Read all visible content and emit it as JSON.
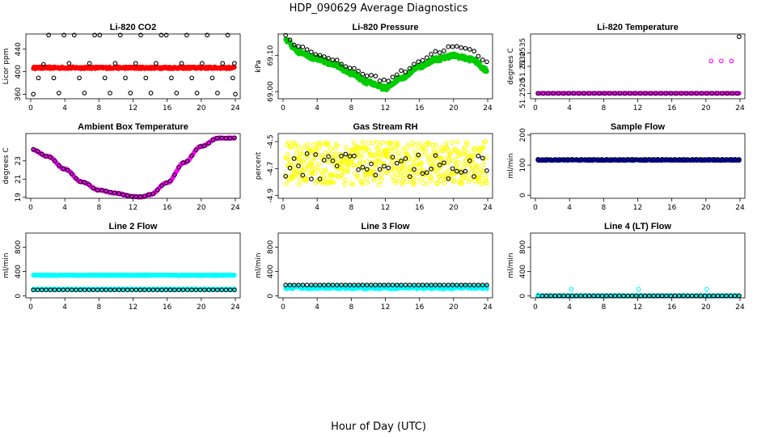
{
  "figure": {
    "title": "HDP_090629  Average Diagnostics",
    "xlabel": "Hour of Day (UTC)"
  },
  "chart_data": [
    {
      "id": "co2",
      "type": "scatter",
      "title": "Li-820 CO2",
      "ylabel": "Licor ppm",
      "xlim": [
        0,
        24
      ],
      "xticks": [
        0,
        4,
        8,
        12,
        16,
        20,
        24
      ],
      "ylim": [
        352,
        467
      ],
      "yticks": [
        {
          "v": 360,
          "label": "360"
        },
        {
          "v": 400,
          "label": "400"
        },
        {
          "v": 440,
          "label": "440"
        }
      ],
      "series": [
        {
          "name": "fine",
          "color": "#ff0000",
          "filled": true,
          "gen": "flat",
          "params": {
            "v": 407,
            "noise": 1.8,
            "n": 420
          }
        },
        {
          "name": "hourly",
          "color": "#000000",
          "filled": false,
          "points": [
            [
              0.3,
              360
            ],
            [
              0.9,
              389
            ],
            [
              1.5,
              413
            ],
            [
              2.1,
              465
            ],
            [
              2.7,
              389
            ],
            [
              3.3,
              362
            ],
            [
              3.9,
              465
            ],
            [
              4.5,
              415
            ],
            [
              5.1,
              465
            ],
            [
              5.7,
              389
            ],
            [
              6.3,
              362
            ],
            [
              6.9,
              415
            ],
            [
              7.5,
              465
            ],
            [
              8.1,
              465
            ],
            [
              8.7,
              389
            ],
            [
              9.3,
              362
            ],
            [
              9.9,
              415
            ],
            [
              10.5,
              465
            ],
            [
              11.1,
              389
            ],
            [
              11.7,
              362
            ],
            [
              12.3,
              415
            ],
            [
              12.9,
              465
            ],
            [
              13.5,
              389
            ],
            [
              14.1,
              362
            ],
            [
              14.7,
              415
            ],
            [
              15.3,
              465
            ],
            [
              15.9,
              465
            ],
            [
              16.5,
              389
            ],
            [
              17.1,
              362
            ],
            [
              17.7,
              415
            ],
            [
              18.3,
              465
            ],
            [
              18.9,
              389
            ],
            [
              19.5,
              362
            ],
            [
              20.1,
              415
            ],
            [
              20.7,
              465
            ],
            [
              21.3,
              389
            ],
            [
              21.9,
              362
            ],
            [
              22.5,
              415
            ],
            [
              23.1,
              465
            ],
            [
              23.7,
              389
            ],
            [
              24.0,
              360
            ],
            [
              23.9,
              415
            ]
          ]
        }
      ]
    },
    {
      "id": "pressure",
      "type": "scatter",
      "title": "Li-820 Pressure",
      "ylabel": "kPa",
      "xlim": [
        0,
        24
      ],
      "xticks": [
        0,
        4,
        8,
        12,
        16,
        20,
        24
      ],
      "ylim": [
        68.98,
        69.16
      ],
      "yticks": [
        {
          "v": 69.0,
          "label": "69.00"
        },
        {
          "v": 69.1,
          "label": "69.10"
        }
      ],
      "series": [
        {
          "name": "fine",
          "color": "#00cc00",
          "filled": true,
          "gen": "curve",
          "params": {
            "n": 420,
            "noise": 0.006,
            "keys": [
              [
                0,
                69.145
              ],
              [
                2,
                69.11
              ],
              [
                4,
                69.09
              ],
              [
                6,
                69.075
              ],
              [
                8,
                69.05
              ],
              [
                10,
                69.025
              ],
              [
                12,
                69.01
              ],
              [
                14,
                69.04
              ],
              [
                16,
                69.07
              ],
              [
                18,
                69.09
              ],
              [
                20,
                69.1
              ],
              [
                22,
                69.09
              ],
              [
                24,
                69.06
              ]
            ]
          }
        },
        {
          "name": "hourly",
          "color": "#000000",
          "filled": false,
          "gen": "curve",
          "params": {
            "n": 48,
            "noise": 0.004,
            "keys": [
              [
                0,
                69.155
              ],
              [
                2,
                69.125
              ],
              [
                4,
                69.105
              ],
              [
                6,
                69.085
              ],
              [
                8,
                69.065
              ],
              [
                10,
                69.045
              ],
              [
                12,
                69.03
              ],
              [
                14,
                69.055
              ],
              [
                16,
                69.085
              ],
              [
                18,
                69.11
              ],
              [
                20,
                69.125
              ],
              [
                22,
                69.115
              ],
              [
                24,
                69.08
              ]
            ]
          }
        }
      ]
    },
    {
      "id": "li820temp",
      "type": "scatter",
      "title": "Li-820 Temperature",
      "ylabel": "degrees C",
      "xlim": [
        0,
        24
      ],
      "xticks": [
        0,
        4,
        8,
        12,
        16,
        20,
        24
      ],
      "ylim": [
        51.2518,
        51.2542
      ],
      "yticks": [
        {
          "v": 51.252,
          "label": "51.2520"
        },
        {
          "v": 51.253,
          "label": "51.2530"
        },
        {
          "v": 51.2535,
          "label": "51.2535"
        }
      ],
      "series": [
        {
          "name": "fine",
          "color": "#ff00ff",
          "filled": true,
          "gen": "flat",
          "params": {
            "v": 51.252,
            "noise": 0,
            "n": 300
          }
        },
        {
          "name": "hourly",
          "color": "#000000",
          "filled": false,
          "points": [
            [
              0.3,
              51.252
            ],
            [
              0.9,
              51.252
            ],
            [
              1.5,
              51.252
            ],
            [
              2.1,
              51.252
            ],
            [
              2.7,
              51.252
            ],
            [
              3.3,
              51.252
            ],
            [
              3.9,
              51.252
            ],
            [
              4.5,
              51.252
            ],
            [
              5.1,
              51.252
            ],
            [
              5.7,
              51.252
            ],
            [
              6.3,
              51.252
            ],
            [
              6.9,
              51.252
            ],
            [
              7.5,
              51.252
            ],
            [
              8.1,
              51.252
            ],
            [
              8.7,
              51.252
            ],
            [
              9.3,
              51.252
            ],
            [
              9.9,
              51.252
            ],
            [
              10.5,
              51.252
            ],
            [
              11.1,
              51.252
            ],
            [
              11.7,
              51.252
            ],
            [
              12.3,
              51.252
            ],
            [
              12.9,
              51.252
            ],
            [
              13.5,
              51.252
            ],
            [
              14.1,
              51.252
            ],
            [
              14.7,
              51.252
            ],
            [
              15.3,
              51.252
            ],
            [
              15.9,
              51.252
            ],
            [
              16.5,
              51.252
            ],
            [
              17.1,
              51.252
            ],
            [
              17.7,
              51.252
            ],
            [
              18.3,
              51.252
            ],
            [
              18.9,
              51.252
            ],
            [
              19.5,
              51.252
            ],
            [
              20.1,
              51.252
            ],
            [
              20.7,
              51.252
            ],
            [
              21.3,
              51.252
            ],
            [
              21.9,
              51.252
            ],
            [
              22.5,
              51.252
            ],
            [
              23.1,
              51.252
            ],
            [
              23.7,
              51.252
            ],
            [
              23.9,
              51.2541
            ]
          ]
        },
        {
          "name": "outliers",
          "color": "#ff00ff",
          "filled": false,
          "points": [
            [
              20.6,
              51.2532
            ],
            [
              21.8,
              51.2532
            ],
            [
              23.0,
              51.2532
            ]
          ]
        }
      ]
    },
    {
      "id": "ambient",
      "type": "scatter",
      "title": "Ambient Box Temperature",
      "ylabel": "degrees C",
      "xlim": [
        0,
        24
      ],
      "xticks": [
        0,
        4,
        8,
        12,
        16,
        20,
        24
      ],
      "ylim": [
        18.9,
        26.0
      ],
      "yticks": [
        {
          "v": 19,
          "label": "19"
        },
        {
          "v": 21,
          "label": "21"
        },
        {
          "v": 23,
          "label": "23"
        }
      ],
      "series": [
        {
          "name": "fine",
          "color": "#ff00ff",
          "filled": true,
          "gen": "curve",
          "params": {
            "n": 300,
            "noise": 0.05,
            "keys": [
              [
                0,
                24.3
              ],
              [
                2,
                23.5
              ],
              [
                4,
                22.1
              ],
              [
                6,
                20.7
              ],
              [
                8,
                19.8
              ],
              [
                10,
                19.45
              ],
              [
                12,
                19.1
              ],
              [
                13,
                19.05
              ],
              [
                14,
                19.3
              ],
              [
                16,
                20.6
              ],
              [
                18,
                22.8
              ],
              [
                20,
                24.6
              ],
              [
                22,
                25.5
              ],
              [
                24,
                25.5
              ]
            ]
          }
        },
        {
          "name": "hourly",
          "color": "#000000",
          "filled": false,
          "gen": "curve",
          "params": {
            "n": 48,
            "noise": 0.03,
            "keys": [
              [
                0,
                24.3
              ],
              [
                2,
                23.5
              ],
              [
                4,
                22.1
              ],
              [
                6,
                20.7
              ],
              [
                8,
                19.8
              ],
              [
                10,
                19.45
              ],
              [
                12,
                19.1
              ],
              [
                13,
                19.05
              ],
              [
                14,
                19.3
              ],
              [
                16,
                20.6
              ],
              [
                18,
                22.8
              ],
              [
                20,
                24.6
              ],
              [
                22,
                25.5
              ],
              [
                24,
                25.5
              ]
            ]
          }
        }
      ]
    },
    {
      "id": "rh",
      "type": "scatter",
      "title": "Gas Stream RH",
      "ylabel": "percent",
      "xlim": [
        0,
        24
      ],
      "xticks": [
        0,
        4,
        8,
        12,
        16,
        20,
        24
      ],
      "ylim": [
        -4.92,
        -4.44
      ],
      "yticks": [
        {
          "v": -4.9,
          "label": "-4.9"
        },
        {
          "v": -4.7,
          "label": "-4.7"
        },
        {
          "v": -4.5,
          "label": "-4.5"
        }
      ],
      "series": [
        {
          "name": "fine",
          "color": "#ffff00",
          "filled": false,
          "gen": "band",
          "params": {
            "n": 520,
            "lo": -4.82,
            "hi": -4.5
          }
        },
        {
          "name": "hourly",
          "color": "#000000",
          "filled": false,
          "gen": "band",
          "params": {
            "n": 48,
            "lo": -4.78,
            "hi": -4.58
          }
        }
      ]
    },
    {
      "id": "sampleflow",
      "type": "scatter",
      "title": "Sample Flow",
      "ylabel": "ml/min",
      "xlim": [
        0,
        24
      ],
      "xticks": [
        0,
        4,
        8,
        12,
        16,
        20,
        24
      ],
      "ylim": [
        -10,
        205
      ],
      "yticks": [
        {
          "v": 0,
          "label": "0"
        },
        {
          "v": 100,
          "label": "100"
        },
        {
          "v": 200,
          "label": "200"
        }
      ],
      "series": [
        {
          "name": "fine",
          "color": "#0000cc",
          "filled": true,
          "gen": "flat",
          "params": {
            "v": 117,
            "noise": 1.5,
            "n": 420
          }
        },
        {
          "name": "hourly",
          "color": "#000000",
          "filled": false,
          "gen": "flat",
          "params": {
            "v": 119,
            "noise": 0.5,
            "n": 48
          }
        }
      ]
    },
    {
      "id": "line2",
      "type": "scatter",
      "title": "Line 2 Flow",
      "ylabel": "ml/min",
      "xlim": [
        0,
        24
      ],
      "xticks": [
        0,
        4,
        8,
        12,
        16,
        20,
        24
      ],
      "ylim": [
        -30,
        1030
      ],
      "yticks": [
        {
          "v": 0,
          "label": "0"
        },
        {
          "v": 400,
          "label": "400"
        },
        {
          "v": 800,
          "label": "800"
        }
      ],
      "series": [
        {
          "name": "fine-high",
          "color": "#00ffff",
          "filled": true,
          "gen": "flat",
          "params": {
            "v": 340,
            "noise": 6,
            "n": 420
          }
        },
        {
          "name": "fine-low",
          "color": "#00ffff",
          "filled": true,
          "gen": "flat",
          "params": {
            "v": 110,
            "noise": 4,
            "n": 200
          }
        },
        {
          "name": "hourly",
          "color": "#000000",
          "filled": false,
          "gen": "flat",
          "params": {
            "v": 100,
            "noise": 0,
            "n": 48
          }
        }
      ]
    },
    {
      "id": "line3",
      "type": "scatter",
      "title": "Line 3 Flow",
      "ylabel": "ml/min",
      "xlim": [
        0,
        24
      ],
      "xticks": [
        0,
        4,
        8,
        12,
        16,
        20,
        24
      ],
      "ylim": [
        -30,
        1030
      ],
      "yticks": [
        {
          "v": 0,
          "label": "0"
        },
        {
          "v": 400,
          "label": "400"
        },
        {
          "v": 800,
          "label": "800"
        }
      ],
      "series": [
        {
          "name": "fine",
          "color": "#00ffff",
          "filled": true,
          "gen": "flat",
          "params": {
            "v": 140,
            "noise": 25,
            "n": 420
          }
        },
        {
          "name": "hourly",
          "color": "#000000",
          "filled": false,
          "gen": "flat",
          "params": {
            "v": 180,
            "noise": 0,
            "n": 48
          }
        }
      ]
    },
    {
      "id": "line4",
      "type": "scatter",
      "title": "Line 4 (LT) Flow",
      "ylabel": "ml/min",
      "xlim": [
        0,
        24
      ],
      "xticks": [
        0,
        4,
        8,
        12,
        16,
        20,
        24
      ],
      "ylim": [
        -30,
        1030
      ],
      "yticks": [
        {
          "v": 0,
          "label": "0"
        },
        {
          "v": 400,
          "label": "400"
        },
        {
          "v": 800,
          "label": "800"
        }
      ],
      "series": [
        {
          "name": "fine",
          "color": "#00ffff",
          "filled": true,
          "gen": "flat",
          "params": {
            "v": 3,
            "noise": 0,
            "n": 200
          }
        },
        {
          "name": "hourly",
          "color": "#000000",
          "filled": false,
          "gen": "flat",
          "params": {
            "v": 3,
            "noise": 0,
            "n": 48
          }
        },
        {
          "name": "spikes",
          "color": "#00ffff",
          "filled": false,
          "points": [
            [
              0.3,
              15
            ],
            [
              4.2,
              110
            ],
            [
              12.1,
              110
            ],
            [
              20.1,
              110
            ]
          ]
        }
      ]
    }
  ]
}
